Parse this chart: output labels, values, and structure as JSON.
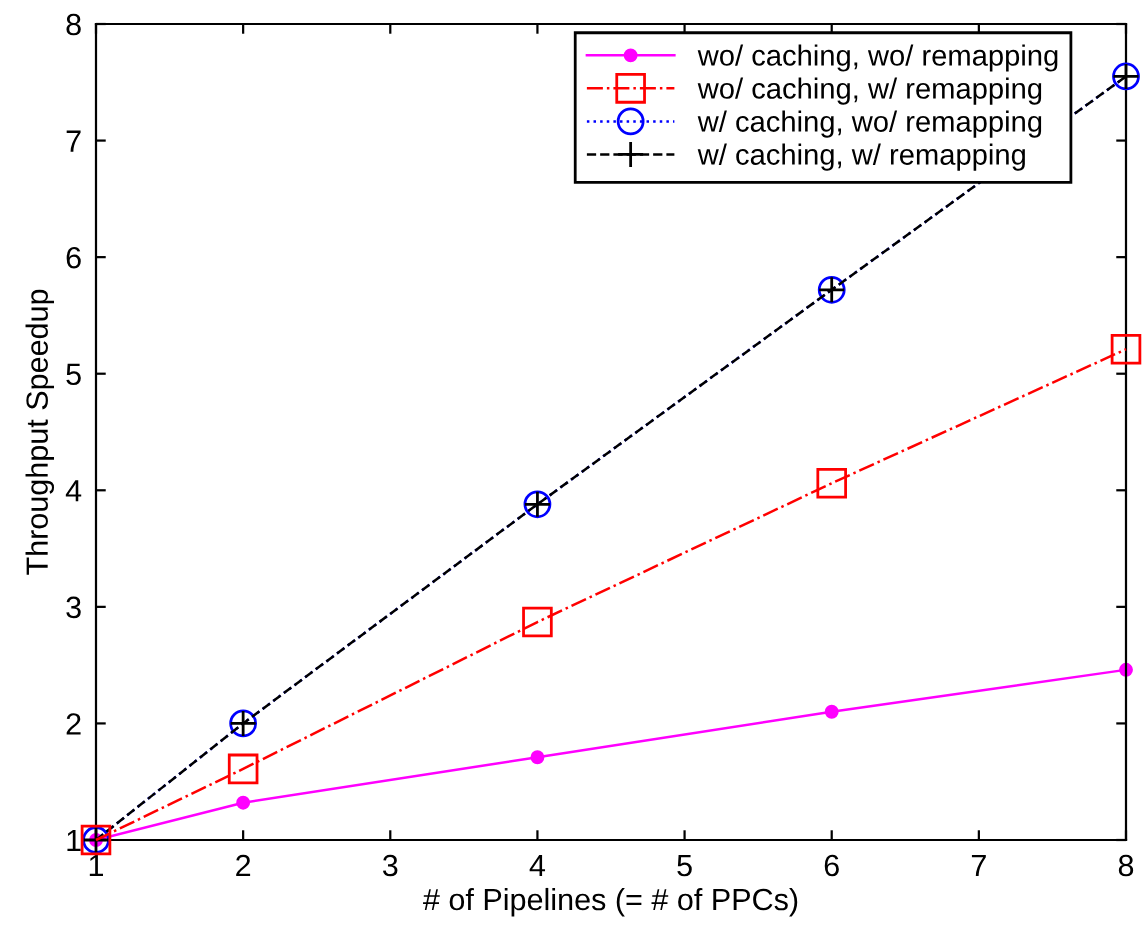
{
  "chart_data": {
    "type": "line",
    "xlabel": "# of Pipelines (= # of PPCs)",
    "ylabel": "Throughput Speedup",
    "x": [
      1,
      2,
      4,
      6,
      8
    ],
    "xlim": [
      1,
      8
    ],
    "xticks": [
      1,
      2,
      3,
      4,
      5,
      6,
      7,
      8
    ],
    "ylim": [
      1,
      8
    ],
    "yticks": [
      1,
      2,
      3,
      4,
      5,
      6,
      7,
      8
    ],
    "grid": false,
    "legend": "top right",
    "series": [
      {
        "name": "wo/ caching, wo/ remapping",
        "color": "#ff00ff",
        "marker": "circle",
        "line_style": "solid",
        "values": [
          1,
          1.32,
          1.71,
          2.1,
          2.46
        ]
      },
      {
        "name": "wo/ caching, w/ remapping",
        "color": "#ff0000",
        "marker": "square",
        "line_style": "dashdot",
        "values": [
          1,
          1.61,
          2.87,
          4.06,
          5.21
        ]
      },
      {
        "name": "w/ caching, wo/ remapping",
        "color": "#0000ff",
        "marker": "circle",
        "line_style": "dotted",
        "values": [
          1,
          2.0,
          3.88,
          5.72,
          7.55
        ]
      },
      {
        "name": "w/ caching, w/ remapping",
        "color": "#000000",
        "marker": "cross",
        "line_style": "dashed",
        "values": [
          1,
          2.0,
          3.88,
          5.72,
          7.55
        ]
      }
    ]
  }
}
